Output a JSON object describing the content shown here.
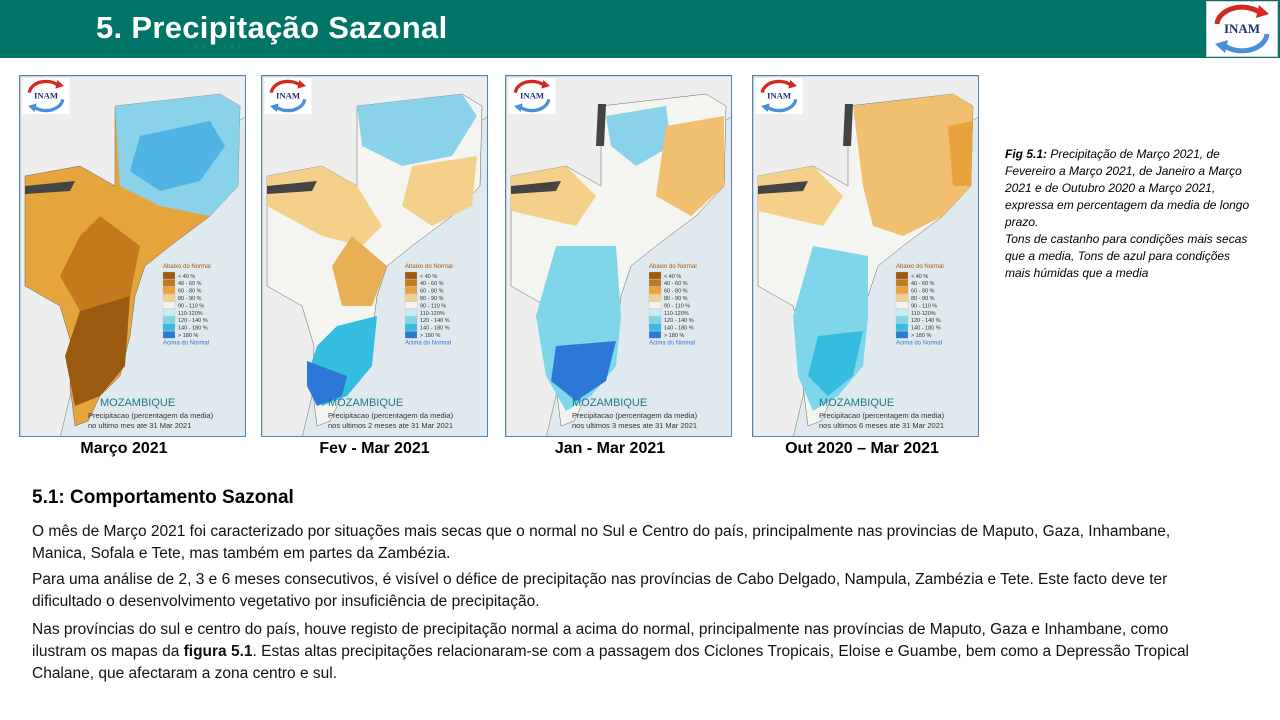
{
  "header": {
    "title": "5. Precipitação Sazonal",
    "logo_text": "INAM"
  },
  "maps": [
    {
      "caption": "Março 2021",
      "country": "MOZAMBIQUE",
      "note_line1": "Precipitacao (percentagem da media)",
      "note_line2": "no ultimo mes ate 31 Mar 2021"
    },
    {
      "caption": "Fev - Mar 2021",
      "country": "MOZAMBIQUE",
      "note_line1": "Precipitacao (percentagem da media)",
      "note_line2": "nos ultimos 2 meses ate 31 Mar 2021"
    },
    {
      "caption": "Jan - Mar 2021",
      "country": "MOZAMBIQUE",
      "note_line1": "Precipitacao (percentagem da media)",
      "note_line2": "nos ultimos 3 meses ate 31 Mar 2021"
    },
    {
      "caption": "Out 2020 – Mar 2021",
      "country": "MOZAMBIQUE",
      "note_line1": "Precipitacao (percentagem da media)",
      "note_line2": "nos ultimos 6 meses ate 31 Mar 2021"
    }
  ],
  "legend": {
    "title_below": "Abaixo do Normal",
    "title_above": "Acima do Normal",
    "items": [
      {
        "label": "< 40 %",
        "color": "#9a5a10"
      },
      {
        "label": "40 - 60 %",
        "color": "#c47a1c"
      },
      {
        "label": "60 - 80 %",
        "color": "#e8a23c"
      },
      {
        "label": "80 - 90 %",
        "color": "#f5d08a"
      },
      {
        "label": "90 - 110 %",
        "color": "#f4f4f0"
      },
      {
        "label": "110-120%",
        "color": "#c8ecf4"
      },
      {
        "label": "120 - 140 %",
        "color": "#7fd6ea"
      },
      {
        "label": "140 - 180 %",
        "color": "#35bde0"
      },
      {
        "label": "> 180 %",
        "color": "#2b78d6"
      }
    ]
  },
  "figure_note": {
    "label": "Fig 5.1:",
    "text": "Precipitação de Março 2021, de Fevereiro a Março 2021, de Janeiro a Março 2021 e de Outubro 2020 a Março 2021, expressa em percentagem da media de longo prazo.",
    "text2": "Tons de castanho para condições mais secas que a media, Tons de azul para condições mais húmidas que a media"
  },
  "section": {
    "title": "5.1: Comportamento Sazonal",
    "p1": "O mês de Março 2021 foi caracterizado por situações mais secas que o normal no Sul e Centro do país, principalmente nas provincias de Maputo, Gaza, Inhambane, Manica, Sofala e Tete, mas também em partes da Zambézia.",
    "p2": "Para uma análise de 2, 3 e 6 meses consecutivos, é visível o défice de precipitação nas províncias de Cabo Delgado, Nampula, Zambézia e Tete. Este facto deve ter dificultado o desenvolvimento vegetativo por insuficiência de precipitação.",
    "p3_before": "Nas províncias do sul e centro do país, houve registo de precipitação normal a acima do normal, principalmente nas províncias de Maputo, Gaza e Inhambane, como ilustram os mapas da ",
    "p3_bold": "figura 5.1",
    "p3_after": ". Estas altas precipitações relacionaram-se com a passagem dos Ciclones Tropicais, Eloise e Guambe, bem como a Depressão Tropical Chalane, que afectaram a zona centro e sul."
  },
  "colors": {
    "header_bg": "#007567",
    "sea": "#dfe9ee",
    "land": "#eeeeee",
    "map_border": "#4f86b9"
  }
}
